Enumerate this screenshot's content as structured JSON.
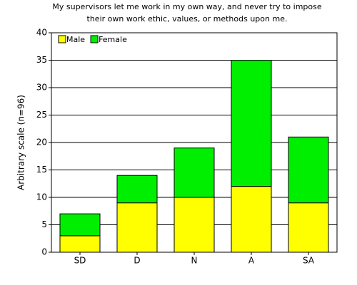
{
  "chart_data": {
    "type": "bar",
    "stacked": true,
    "title": [
      "My supervisors let me work in my own way, and never try to impose",
      "their own work ethic, values, or methods upon me."
    ],
    "y_label": "Arbitrary scale (n=96)",
    "categories": [
      "SD",
      "D",
      "N",
      "A",
      "SA"
    ],
    "series": [
      {
        "name": "Male",
        "color": "#ffff00",
        "values": [
          3,
          9,
          10,
          12,
          9
        ]
      },
      {
        "name": "Female",
        "color": "#00ee00",
        "values": [
          4,
          5,
          9,
          23,
          12
        ]
      }
    ],
    "ylim": [
      0,
      40
    ],
    "yticks": [
      0,
      5,
      10,
      15,
      20,
      25,
      30,
      35,
      40
    ],
    "grid": true,
    "legend": "top-left"
  }
}
